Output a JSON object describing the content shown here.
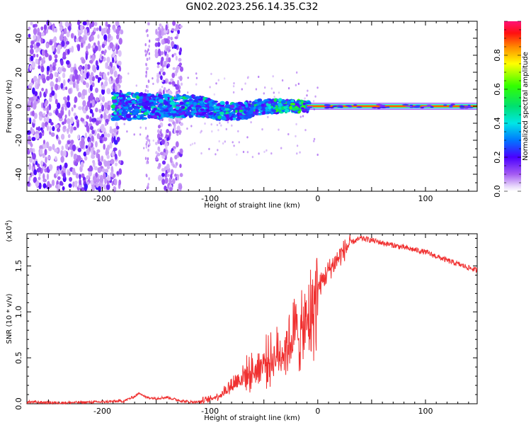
{
  "title": "GN02.2023.256.14.35.C32",
  "chart_data": [
    {
      "type": "heatmap",
      "xlabel": "Height of straight line (km)",
      "ylabel": "Frequency (Hz)",
      "xlim": [
        -270,
        148
      ],
      "ylim": [
        -50,
        50
      ],
      "xticks": [
        -200,
        -100,
        0,
        100
      ],
      "yticks": [
        -40,
        -20,
        0,
        20,
        40
      ],
      "grid": false,
      "description_of_content": [
        {
          "x_range": [
            -270,
            -183
          ],
          "freq_range": [
            -50,
            50
          ],
          "intensity": 0.15
        },
        {
          "x_range": [
            -150,
            -127
          ],
          "freq_range": [
            -50,
            50
          ],
          "intensity": 0.15
        },
        {
          "x_range": [
            -190,
            -10
          ],
          "freq_range": [
            -10,
            8
          ],
          "intensity": 0.45
        },
        {
          "x_range": [
            -10,
            148
          ],
          "freq_range": [
            -1.5,
            1.5
          ],
          "intensity": 0.85
        }
      ],
      "colorbar": {
        "label": "Normalized spectral amplitude",
        "range": [
          0.0,
          1.0
        ],
        "ticks": [
          0.0,
          0.2,
          0.4,
          0.6,
          0.8
        ]
      }
    },
    {
      "type": "line",
      "xlabel": "Height of straight line (km)",
      "ylabel": "SNR (10 * v/v)",
      "scale_label": "(x10",
      "scale_exp": "4",
      "scale_close": ")",
      "xlim": [
        -270,
        148
      ],
      "ylim": [
        0,
        1.85
      ],
      "xticks": [
        -200,
        -100,
        0,
        100
      ],
      "yticks": [
        "0.0",
        "0.5",
        "1.0",
        "1.5"
      ],
      "grid": false,
      "color": "#f03030",
      "series": [
        {
          "x": [
            -270,
            -240,
            -200,
            -180,
            -170,
            -165,
            -160,
            -150,
            -140,
            -130,
            -120,
            -110,
            -100,
            -90,
            -80,
            -70,
            -60,
            -50,
            -40,
            -30,
            -25,
            -20,
            -15,
            -10,
            -5,
            0,
            10,
            20,
            30,
            40,
            50,
            60,
            80,
            100,
            120,
            148
          ],
          "values": [
            0.02,
            0.01,
            0.02,
            0.03,
            0.08,
            0.12,
            0.07,
            0.06,
            0.07,
            0.04,
            0.02,
            0.02,
            0.05,
            0.1,
            0.2,
            0.3,
            0.35,
            0.45,
            0.5,
            0.6,
            0.7,
            0.8,
            0.75,
            0.85,
            1.0,
            1.25,
            1.45,
            1.6,
            1.75,
            1.8,
            1.78,
            1.75,
            1.7,
            1.65,
            1.56,
            1.45
          ]
        }
      ]
    }
  ]
}
